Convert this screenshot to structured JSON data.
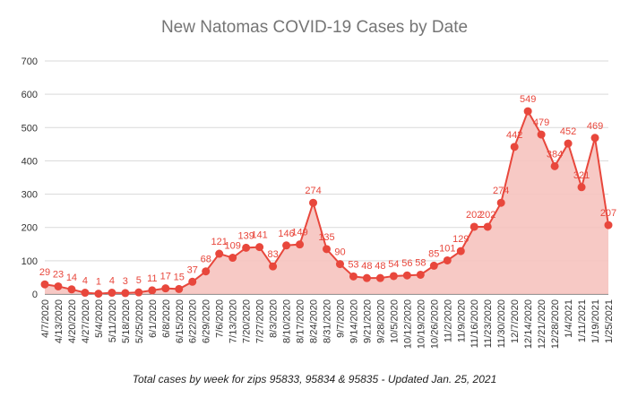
{
  "chart_data": {
    "type": "area",
    "title": "New Natomas COVID-19 Cases by Date",
    "caption": "Total cases by week for zips 95833, 95834 & 95835 - Updated Jan. 25, 2021",
    "xlabel": "",
    "ylabel": "",
    "ylim": [
      0,
      700
    ],
    "yticks": [
      0,
      100,
      200,
      300,
      400,
      500,
      600,
      700
    ],
    "grid": true,
    "legend": "none",
    "categories": [
      "4/7/2020",
      "4/13/2020",
      "4/20/2020",
      "4/27/2020",
      "5/4/2020",
      "5/11/2020",
      "5/18/2020",
      "5/25/2020",
      "6/1/2020",
      "6/8/2020",
      "6/15/2020",
      "6/22/2020",
      "6/29/2020",
      "7/6/2020",
      "7/13/2020",
      "7/20/2020",
      "7/27/2020",
      "8/3/2020",
      "8/10/2020",
      "8/17/2020",
      "8/24/2020",
      "8/31/2020",
      "9/7/2020",
      "9/14/2020",
      "9/21/2020",
      "9/28/2020",
      "10/5/2020",
      "10/12/2020",
      "10/19/2020",
      "10/26/2020",
      "11/2/2020",
      "11/9/2020",
      "11/16/2020",
      "11/23/2020",
      "11/30/2020",
      "12/7/2020",
      "12/14/2020",
      "12/21/2020",
      "12/28/2020",
      "1/4/2021",
      "1/11/2021",
      "1/19/2021",
      "1/25/2021"
    ],
    "values": [
      29,
      23,
      14,
      4,
      1,
      4,
      3,
      5,
      11,
      17,
      15,
      37,
      68,
      121,
      109,
      139,
      141,
      83,
      146,
      149,
      274,
      135,
      90,
      53,
      48,
      48,
      54,
      56,
      58,
      85,
      101,
      129,
      202,
      202,
      274,
      442,
      549,
      479,
      384,
      452,
      321,
      469,
      207
    ],
    "data_labels": [
      "29",
      "23",
      "14",
      "4",
      "1",
      "4",
      "3",
      "5",
      "11",
      "17",
      "15",
      "37",
      "68",
      "121",
      "109",
      "139",
      "141",
      "83",
      "146",
      "149",
      "274",
      "135",
      "90",
      "53",
      "48",
      "48",
      "54",
      "56",
      "58",
      "85",
      "101",
      "129",
      "202",
      "202",
      "274",
      "442",
      "549",
      "479",
      "384",
      "452",
      "321",
      "469",
      "207"
    ],
    "colors": {
      "line": "#e8473c",
      "fill": "#f6c3bf",
      "label": "#e8473c",
      "grid": "#d9d9d9",
      "axis": "#333333"
    }
  }
}
